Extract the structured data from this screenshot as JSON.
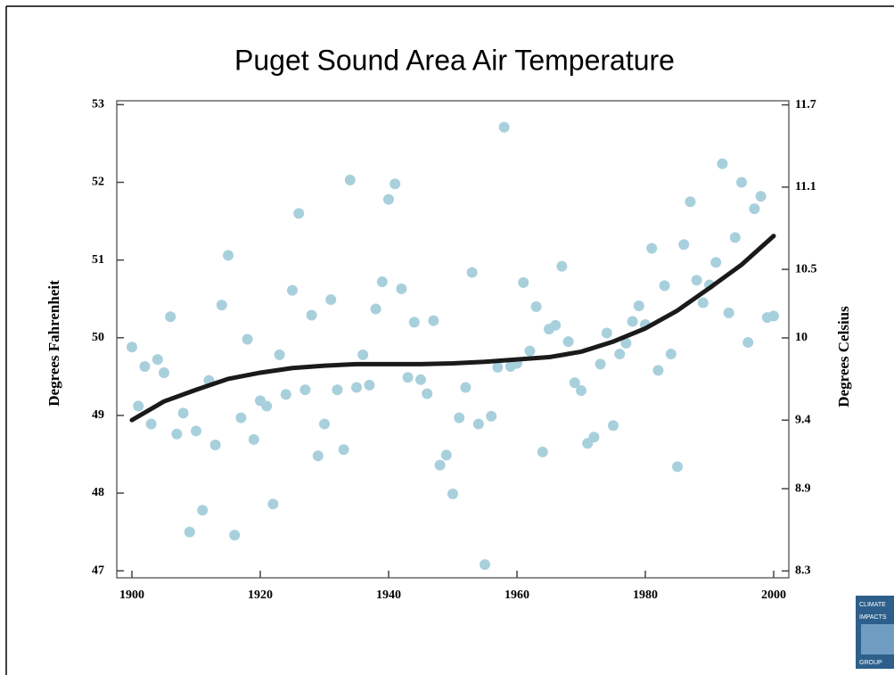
{
  "chart_data": {
    "type": "scatter",
    "title": "Puget Sound Area Air Temperature",
    "y_label": "Degrees Fahrenheit",
    "y2_label": "Degrees Celsius",
    "xlim": [
      1897.64,
      2002.36
    ],
    "xticks": [
      1900,
      1920,
      1940,
      1960,
      1980,
      2000
    ],
    "ylim": [
      46.91,
      53.05
    ],
    "yticks": [
      47,
      48,
      49,
      50,
      51,
      52,
      53
    ],
    "y2lim": [
      8.25,
      11.73
    ],
    "y2ticks": [
      8.3,
      8.9,
      9.4,
      10,
      10.5,
      11.1,
      11.7
    ],
    "series": [
      {
        "type": "scatter",
        "color": "#a8d0dc",
        "x": [
          1900,
          1901,
          1902,
          1903,
          1904,
          1905,
          1906,
          1907,
          1908,
          1909,
          1910,
          1911,
          1912,
          1913,
          1914,
          1915,
          1916,
          1917,
          1918,
          1919,
          1920,
          1921,
          1922,
          1923,
          1924,
          1925,
          1926,
          1927,
          1928,
          1929,
          1930,
          1931,
          1932,
          1933,
          1934,
          1935,
          1936,
          1937,
          1938,
          1939,
          1940,
          1941,
          1942,
          1943,
          1944,
          1945,
          1946,
          1947,
          1948,
          1949,
          1950,
          1951,
          1952,
          1953,
          1954,
          1955,
          1956,
          1957,
          1958,
          1959,
          1960,
          1961,
          1962,
          1963,
          1964,
          1965,
          1966,
          1967,
          1968,
          1969,
          1970,
          1971,
          1972,
          1973,
          1974,
          1975,
          1976,
          1977,
          1978,
          1979,
          1980,
          1981,
          1982,
          1983,
          1984,
          1985,
          1986,
          1987,
          1988,
          1989,
          1990,
          1991,
          1992,
          1993,
          1994,
          1995,
          1996,
          1997,
          1998,
          1999,
          2000
        ],
        "values": [
          49.88,
          49.12,
          49.63,
          48.89,
          49.72,
          49.55,
          50.27,
          48.76,
          49.03,
          47.5,
          48.8,
          47.78,
          49.45,
          48.62,
          50.42,
          51.06,
          47.46,
          48.97,
          49.98,
          48.69,
          49.19,
          49.12,
          47.86,
          49.78,
          49.27,
          50.61,
          51.6,
          49.33,
          50.29,
          48.48,
          48.89,
          50.49,
          49.33,
          48.56,
          52.03,
          49.36,
          49.78,
          49.39,
          50.37,
          50.72,
          51.78,
          51.98,
          50.63,
          49.49,
          50.2,
          49.46,
          49.28,
          50.22,
          48.36,
          48.49,
          47.99,
          48.97,
          49.36,
          50.84,
          48.89,
          47.08,
          48.99,
          49.62,
          52.71,
          49.63,
          49.67,
          50.71,
          49.83,
          50.4,
          48.53,
          50.11,
          50.16,
          50.92,
          49.95,
          49.42,
          49.32,
          48.64,
          48.72,
          49.66,
          50.06,
          48.87,
          49.79,
          49.93,
          50.21,
          50.41,
          50.17,
          51.15,
          49.58,
          50.67,
          49.79,
          48.34,
          51.2,
          51.75,
          50.74,
          50.45,
          50.68,
          50.97,
          52.24,
          50.32,
          51.29,
          52.0,
          49.94,
          51.66,
          51.82,
          50.26,
          50.28
        ]
      },
      {
        "type": "line",
        "color": "#1a1a1a",
        "x": [
          1900,
          1905,
          1910,
          1915,
          1920,
          1925,
          1930,
          1935,
          1940,
          1945,
          1950,
          1955,
          1960,
          1965,
          1970,
          1975,
          1980,
          1985,
          1990,
          1995,
          2000
        ],
        "values": [
          48.94,
          49.18,
          49.33,
          49.47,
          49.55,
          49.61,
          49.64,
          49.66,
          49.66,
          49.66,
          49.67,
          49.69,
          49.72,
          49.75,
          49.82,
          49.95,
          50.12,
          50.35,
          50.64,
          50.94,
          51.31
        ]
      }
    ]
  },
  "logo": {
    "lines": [
      "CLIMATE",
      "IMPACTS",
      "GROUP"
    ]
  }
}
